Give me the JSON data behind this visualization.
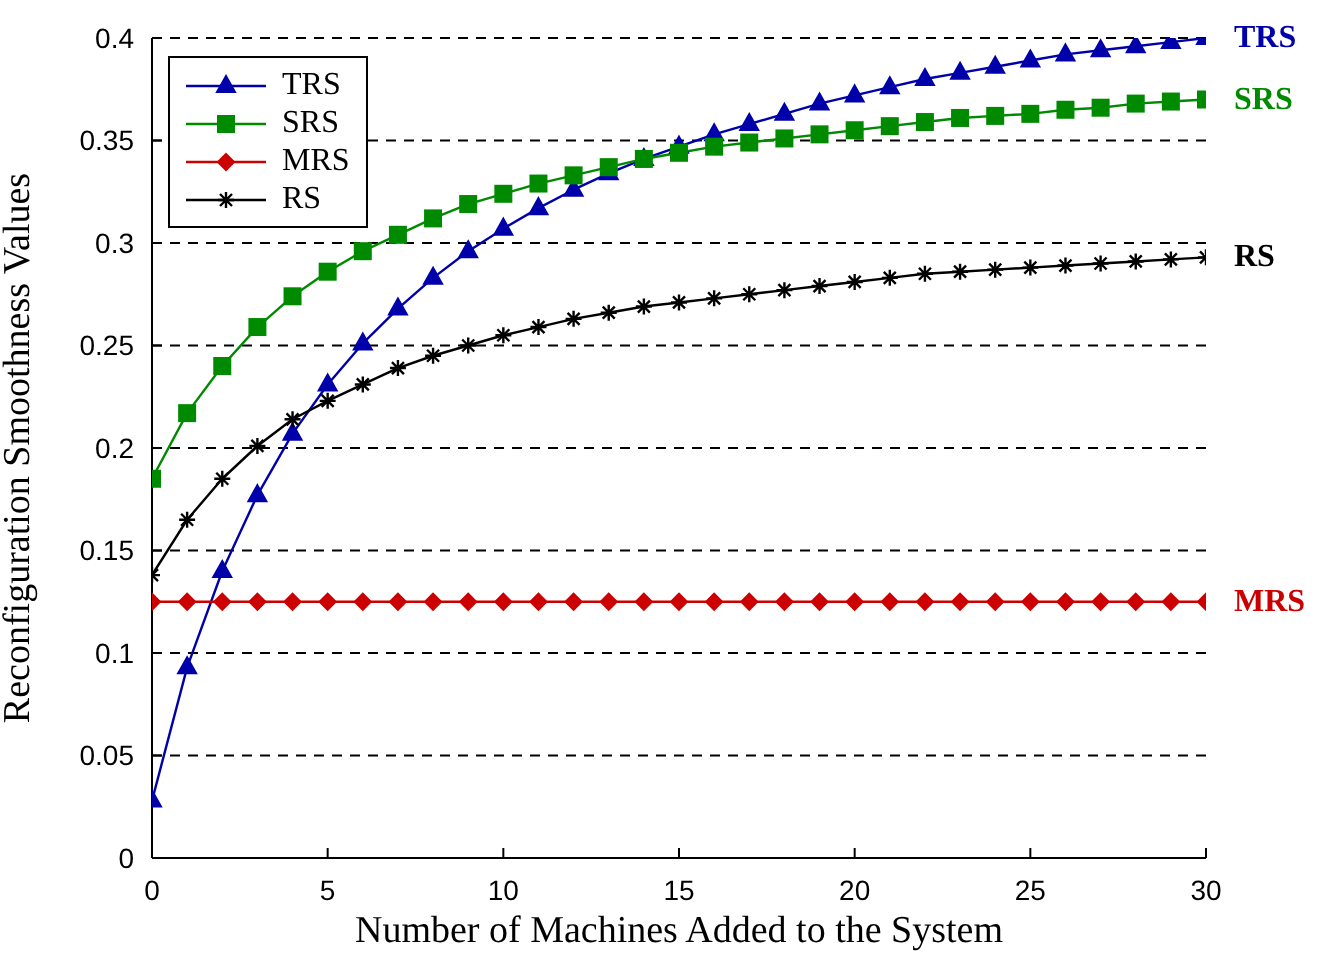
{
  "chart_data": {
    "type": "line",
    "xlabel": "Number of Machines Added to the System",
    "ylabel": "Reconfiguration Smoothness Values",
    "x": [
      0,
      1,
      2,
      3,
      4,
      5,
      6,
      7,
      8,
      9,
      10,
      11,
      12,
      13,
      14,
      15,
      16,
      17,
      18,
      19,
      20,
      21,
      22,
      23,
      24,
      25,
      26,
      27,
      28,
      29,
      30
    ],
    "series": [
      {
        "name": "TRS",
        "color": "#0000aa",
        "marker": "triangle",
        "values": [
          0.028,
          0.093,
          0.14,
          0.177,
          0.207,
          0.231,
          0.251,
          0.268,
          0.283,
          0.296,
          0.307,
          0.317,
          0.326,
          0.334,
          0.341,
          0.347,
          0.353,
          0.358,
          0.363,
          0.368,
          0.372,
          0.376,
          0.38,
          0.383,
          0.386,
          0.389,
          0.392,
          0.394,
          0.396,
          0.398,
          0.4
        ]
      },
      {
        "name": "SRS",
        "color": "#008a00",
        "marker": "square",
        "values": [
          0.185,
          0.217,
          0.24,
          0.259,
          0.274,
          0.286,
          0.296,
          0.304,
          0.312,
          0.319,
          0.324,
          0.329,
          0.333,
          0.337,
          0.341,
          0.344,
          0.347,
          0.349,
          0.351,
          0.353,
          0.355,
          0.357,
          0.359,
          0.361,
          0.362,
          0.363,
          0.365,
          0.366,
          0.368,
          0.369,
          0.37
        ]
      },
      {
        "name": "MRS",
        "color": "#cc0000",
        "marker": "diamond",
        "values": [
          0.125,
          0.125,
          0.125,
          0.125,
          0.125,
          0.125,
          0.125,
          0.125,
          0.125,
          0.125,
          0.125,
          0.125,
          0.125,
          0.125,
          0.125,
          0.125,
          0.125,
          0.125,
          0.125,
          0.125,
          0.125,
          0.125,
          0.125,
          0.125,
          0.125,
          0.125,
          0.125,
          0.125,
          0.125,
          0.125,
          0.125
        ]
      },
      {
        "name": "RS",
        "color": "#000000",
        "marker": "cross",
        "values": [
          0.138,
          0.165,
          0.185,
          0.201,
          0.214,
          0.223,
          0.231,
          0.239,
          0.245,
          0.25,
          0.255,
          0.259,
          0.263,
          0.266,
          0.269,
          0.271,
          0.273,
          0.275,
          0.277,
          0.279,
          0.281,
          0.283,
          0.285,
          0.286,
          0.287,
          0.288,
          0.289,
          0.29,
          0.291,
          0.292,
          0.293
        ]
      }
    ],
    "annotations": [
      "TRS",
      "SRS",
      "MRS",
      "RS"
    ],
    "xlim": [
      0,
      30
    ],
    "xticks": [
      0,
      5,
      10,
      15,
      20,
      25,
      30
    ],
    "ylim": [
      0,
      0.4
    ],
    "yticks": [
      0,
      0.05,
      0.1,
      0.15,
      0.2,
      0.25,
      0.3,
      0.35,
      0.4
    ],
    "grid": "y",
    "legend": "top left",
    "line_style": "solid"
  }
}
